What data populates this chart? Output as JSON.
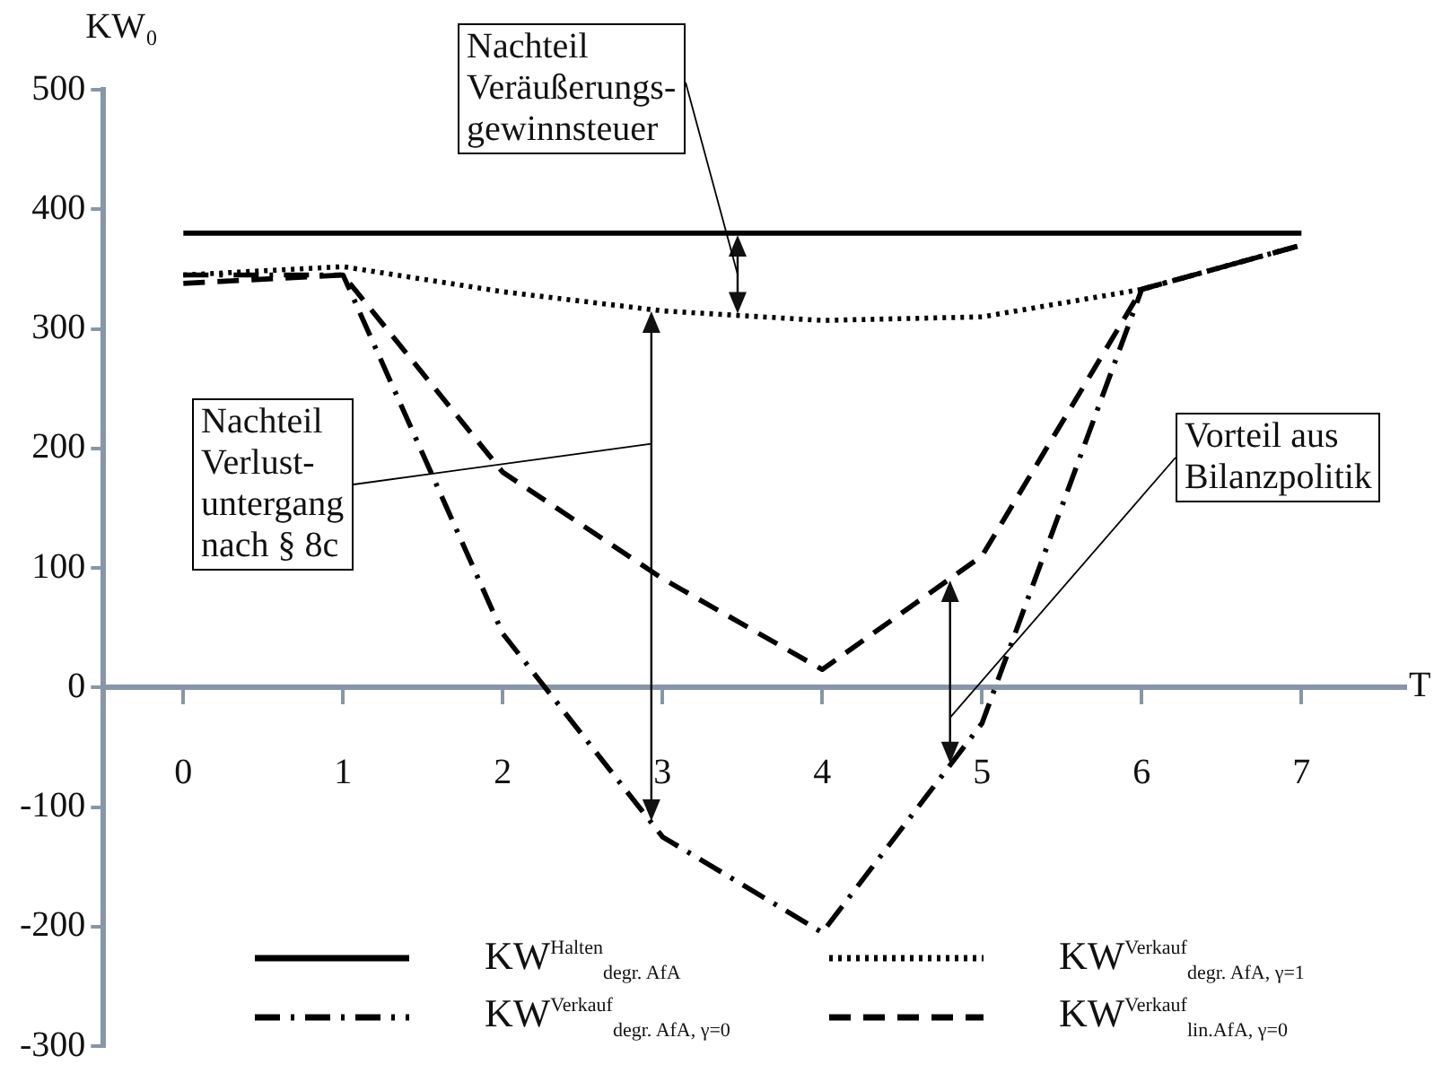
{
  "chart_data": {
    "type": "line",
    "xlabel": "T",
    "ylabel": "KW₀",
    "x": [
      0,
      1,
      2,
      3,
      4,
      5,
      6,
      7
    ],
    "xlim": [
      -0.5,
      7.65
    ],
    "xticks": [
      0,
      1,
      2,
      3,
      4,
      5,
      6,
      7
    ],
    "ylim": [
      -300,
      500
    ],
    "yticks": [
      -300,
      -200,
      -100,
      0,
      100,
      200,
      300,
      400,
      500
    ],
    "grid": false,
    "legend": "bottom",
    "marker": "none",
    "series": [
      {
        "name": "KW$^{Halten}$$_{degr. AfA}$",
        "color": "#000000",
        "line_style": "solid",
        "values": [
          380,
          380,
          380,
          380,
          380,
          380,
          380,
          380
        ]
      },
      {
        "name": "KW$^{Verkauf}$$_{degr. AfA, γ=1}$",
        "color": "#000000",
        "line_style": "dotted",
        "values": [
          345,
          352,
          331,
          315,
          307,
          310,
          333,
          370
        ]
      },
      {
        "name": "KW$^{Verkauf}$$_{degr. AfA, γ=0}$",
        "color": "#000000",
        "line_style": "dashdot",
        "values": [
          345,
          345,
          45,
          -125,
          -205,
          -30,
          333,
          370
        ]
      },
      {
        "name": "KW$^{Verkauf}$$_{lin.AfA, γ=0}$",
        "color": "#000000",
        "line_style": "dashed",
        "values": [
          338,
          345,
          180,
          91,
          15,
          110,
          333,
          370
        ]
      }
    ],
    "annotations": [
      "Nachteil\nVeräußerungs-\ngewinnsteuer",
      "Nachteil\nVerlust-\nuntergang\nnach § 8c",
      "Vorteil aus\nBilanzpolitik"
    ]
  }
}
